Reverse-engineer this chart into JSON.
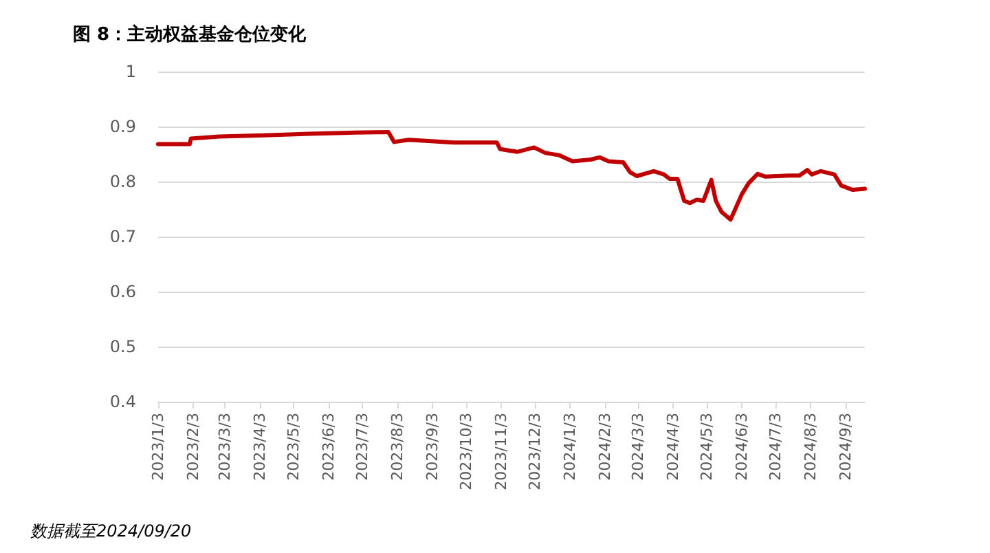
{
  "chart_data": {
    "type": "line",
    "title": "图 8：主动权益基金仓位变化",
    "annotations": [
      "数据截至2024/09/20"
    ],
    "xlim": [
      "2023-01-03",
      "2024-09-20"
    ],
    "xticks": [
      {
        "value": "2023-01-03",
        "label": "2023/1/3"
      },
      {
        "value": "2023-02-03",
        "label": "2023/2/3"
      },
      {
        "value": "2023-03-03",
        "label": "2023/3/3"
      },
      {
        "value": "2023-04-03",
        "label": "2023/4/3"
      },
      {
        "value": "2023-05-03",
        "label": "2023/5/3"
      },
      {
        "value": "2023-06-03",
        "label": "2023/6/3"
      },
      {
        "value": "2023-07-03",
        "label": "2023/7/3"
      },
      {
        "value": "2023-08-03",
        "label": "2023/8/3"
      },
      {
        "value": "2023-09-03",
        "label": "2023/9/3"
      },
      {
        "value": "2023-10-03",
        "label": "2023/10/3"
      },
      {
        "value": "2023-11-03",
        "label": "2023/11/3"
      },
      {
        "value": "2023-12-03",
        "label": "2023/12/3"
      },
      {
        "value": "2024-01-03",
        "label": "2024/1/3"
      },
      {
        "value": "2024-02-03",
        "label": "2024/2/3"
      },
      {
        "value": "2024-03-03",
        "label": "2024/3/3"
      },
      {
        "value": "2024-04-03",
        "label": "2024/4/3"
      },
      {
        "value": "2024-05-03",
        "label": "2024/5/3"
      },
      {
        "value": "2024-06-03",
        "label": "2024/6/3"
      },
      {
        "value": "2024-07-03",
        "label": "2024/7/3"
      },
      {
        "value": "2024-08-03",
        "label": "2024/8/3"
      },
      {
        "value": "2024-09-03",
        "label": "2024/9/3"
      }
    ],
    "ylim": [
      0.4,
      1
    ],
    "yticks": [
      0.4,
      0.5,
      0.6,
      0.7,
      0.8,
      0.9,
      1
    ],
    "grid": "y",
    "marker": "none",
    "line_style": "solid",
    "x": [
      "2023-01-03",
      "2023-01-31",
      "2023-02-01",
      "2023-02-26",
      "2023-04-07",
      "2023-05-17",
      "2023-06-26",
      "2023-07-26",
      "2023-07-31",
      "2023-08-13",
      "2023-09-22",
      "2023-10-30",
      "2023-11-02",
      "2023-11-17",
      "2023-12-02",
      "2023-12-12",
      "2023-12-24",
      "2024-01-05",
      "2024-01-21",
      "2024-01-29",
      "2024-02-06",
      "2024-02-19",
      "2024-02-25",
      "2024-03-02",
      "2024-03-17",
      "2024-03-26",
      "2024-03-31",
      "2024-04-07",
      "2024-04-13",
      "2024-04-18",
      "2024-04-24",
      "2024-04-30",
      "2024-05-07",
      "2024-05-11",
      "2024-05-16",
      "2024-05-24",
      "2024-05-28",
      "2024-06-03",
      "2024-06-09",
      "2024-06-17",
      "2024-06-24",
      "2024-07-15",
      "2024-07-24",
      "2024-07-31",
      "2024-08-04",
      "2024-08-12",
      "2024-08-24",
      "2024-08-30",
      "2024-09-09",
      "2024-09-20"
    ],
    "series": [
      {
        "color": "#c00000",
        "values": [
          0.868,
          0.868,
          0.878,
          0.882,
          0.884,
          0.887,
          0.889,
          0.89,
          0.872,
          0.876,
          0.871,
          0.871,
          0.859,
          0.854,
          0.862,
          0.852,
          0.848,
          0.837,
          0.84,
          0.844,
          0.837,
          0.835,
          0.817,
          0.81,
          0.819,
          0.813,
          0.805,
          0.805,
          0.765,
          0.761,
          0.767,
          0.765,
          0.803,
          0.765,
          0.745,
          0.731,
          0.749,
          0.777,
          0.797,
          0.814,
          0.809,
          0.811,
          0.811,
          0.821,
          0.813,
          0.819,
          0.813,
          0.793,
          0.785,
          0.787
        ]
      }
    ]
  }
}
